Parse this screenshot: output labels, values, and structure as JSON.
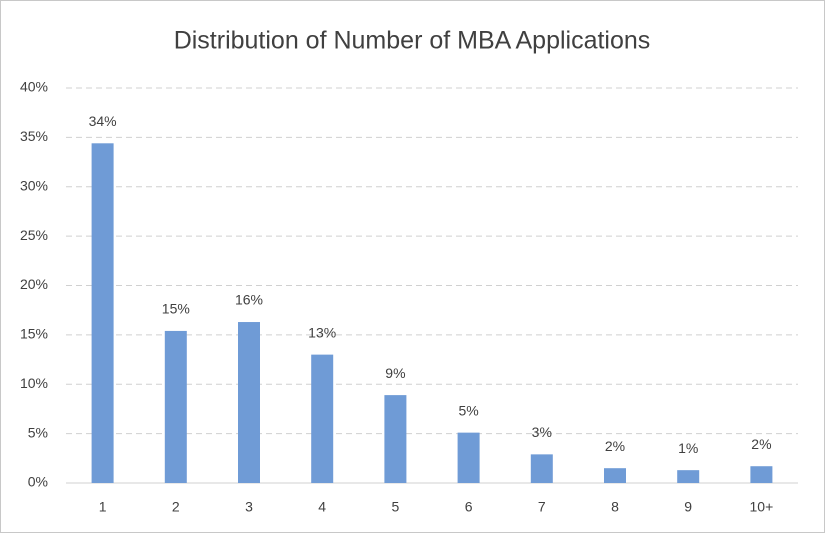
{
  "chart_data": {
    "type": "bar",
    "title": "Distribution of Number of MBA Applications",
    "categories": [
      "1",
      "2",
      "3",
      "4",
      "5",
      "6",
      "7",
      "8",
      "9",
      "10+"
    ],
    "values": [
      34.4,
      15.4,
      16.3,
      13.0,
      8.9,
      5.1,
      2.9,
      1.5,
      1.3,
      1.7
    ],
    "value_labels": [
      "34%",
      "15%",
      "16%",
      "13%",
      "9%",
      "5%",
      "3%",
      "2%",
      "1%",
      "2%"
    ],
    "color": "#6f9bd6",
    "ylim": [
      0,
      40
    ],
    "yticks": [
      {
        "value": 0,
        "label": "0%"
      },
      {
        "value": 5,
        "label": "5%"
      },
      {
        "value": 10,
        "label": "10%"
      },
      {
        "value": 15,
        "label": "15%"
      },
      {
        "value": 20,
        "label": "20%"
      },
      {
        "value": 25,
        "label": "25%"
      },
      {
        "value": 30,
        "label": "30%"
      },
      {
        "value": 35,
        "label": "35%"
      },
      {
        "value": 40,
        "label": "40%"
      }
    ],
    "grid": true
  }
}
